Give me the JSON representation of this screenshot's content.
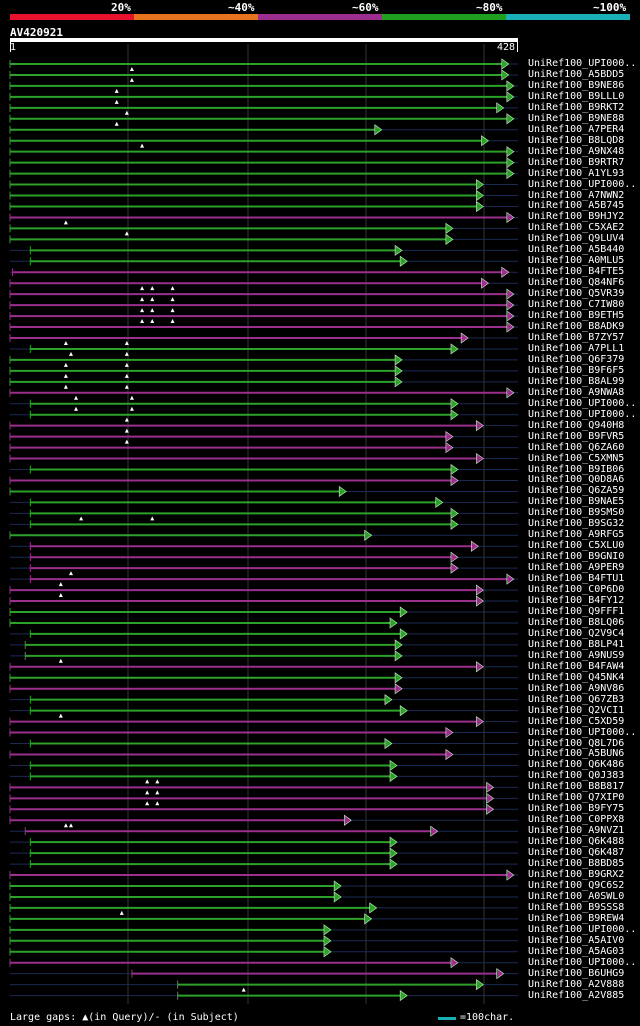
{
  "percent_labels": [
    "20%",
    "~40%",
    "~60%",
    "~80%",
    "~100%"
  ],
  "percent_colors": [
    "#e8102c",
    "#e8731f",
    "#9b2e8f",
    "#1f9e1f",
    "#19b0b8"
  ],
  "query": {
    "name": "AV420921",
    "start": "1",
    "end": "428"
  },
  "footer": {
    "gaps_text": "Large gaps: ▲(in Query)/- (in Subject)",
    "scale_text": "=100char."
  },
  "colors": {
    "green": "#2ea12a",
    "magenta": "#9a2f8c",
    "line": "#1a2a55",
    "accent": "#19b0b8"
  },
  "hits": [
    {
      "label": "UniRef100_UPI000..",
      "c": "g",
      "s": 0,
      "e": 0.97,
      "m": []
    },
    {
      "label": "UniRef100_A5BDD5",
      "c": "g",
      "s": 0,
      "e": 0.97,
      "m": [
        0.24
      ]
    },
    {
      "label": "UniRef100_B9NE86",
      "c": "g",
      "s": 0,
      "e": 0.98,
      "m": [
        0.24
      ]
    },
    {
      "label": "UniRef100_B9LLL0",
      "c": "g",
      "s": 0,
      "e": 0.98,
      "m": [
        0.21
      ]
    },
    {
      "label": "UniRef100_B9RKT2",
      "c": "g",
      "s": 0,
      "e": 0.96,
      "m": [
        0.21
      ]
    },
    {
      "label": "UniRef100_B9NE88",
      "c": "g",
      "s": 0,
      "e": 0.98,
      "m": [
        0.23
      ]
    },
    {
      "label": "UniRef100_A7PER4",
      "c": "g",
      "s": 0,
      "e": 0.72,
      "m": [
        0.21
      ]
    },
    {
      "label": "UniRef100_B8LQD8",
      "c": "g",
      "s": 0,
      "e": 0.93,
      "m": []
    },
    {
      "label": "UniRef100_A9NX48",
      "c": "g",
      "s": 0,
      "e": 0.98,
      "m": [
        0.26
      ]
    },
    {
      "label": "UniRef100_B9RTR7",
      "c": "g",
      "s": 0,
      "e": 0.98,
      "m": []
    },
    {
      "label": "UniRef100_A1YL93",
      "c": "g",
      "s": 0,
      "e": 0.98,
      "m": []
    },
    {
      "label": "UniRef100_UPI000..",
      "c": "g",
      "s": 0,
      "e": 0.92,
      "m": []
    },
    {
      "label": "UniRef100_A7NWN2",
      "c": "g",
      "s": 0,
      "e": 0.92,
      "m": []
    },
    {
      "label": "UniRef100_A5B745",
      "c": "g",
      "s": 0,
      "e": 0.92,
      "m": []
    },
    {
      "label": "UniRef100_B9HJY2",
      "c": "m",
      "s": 0,
      "e": 0.98,
      "m": []
    },
    {
      "label": "UniRef100_C5XAE2",
      "c": "g",
      "s": 0,
      "e": 0.86,
      "m": [
        0.11
      ]
    },
    {
      "label": "UniRef100_Q9LUV4",
      "c": "g",
      "s": 0,
      "e": 0.86,
      "m": [
        0.23
      ]
    },
    {
      "label": "UniRef100_A5B440",
      "c": "g",
      "s": 0.04,
      "e": 0.76,
      "m": []
    },
    {
      "label": "UniRef100_A0MLU5",
      "c": "g",
      "s": 0.04,
      "e": 0.77,
      "m": []
    },
    {
      "label": "UniRef100_B4FTE5",
      "c": "m",
      "s": 0.005,
      "e": 0.97,
      "m": []
    },
    {
      "label": "UniRef100_Q84NF6",
      "c": "m",
      "s": 0,
      "e": 0.93,
      "m": []
    },
    {
      "label": "UniRef100_Q5VR39",
      "c": "m",
      "s": 0,
      "e": 0.98,
      "m": [
        0.26,
        0.28,
        0.32
      ]
    },
    {
      "label": "UniRef100_C7IW80",
      "c": "m",
      "s": 0,
      "e": 0.98,
      "m": [
        0.26,
        0.28,
        0.32
      ]
    },
    {
      "label": "UniRef100_B9ETH5",
      "c": "m",
      "s": 0,
      "e": 0.98,
      "m": [
        0.26,
        0.28,
        0.32
      ]
    },
    {
      "label": "UniRef100_B8ADK9",
      "c": "m",
      "s": 0,
      "e": 0.98,
      "m": [
        0.26,
        0.28,
        0.32
      ]
    },
    {
      "label": "UniRef100_B7ZY57",
      "c": "m",
      "s": 0,
      "e": 0.89,
      "m": []
    },
    {
      "label": "UniRef100_A7PLL1",
      "c": "g",
      "s": 0.04,
      "e": 0.87,
      "m": [
        0.11,
        0.23
      ]
    },
    {
      "label": "UniRef100_Q6F379",
      "c": "g",
      "s": 0,
      "e": 0.76,
      "m": [
        0.12,
        0.23
      ]
    },
    {
      "label": "UniRef100_B9F6F5",
      "c": "g",
      "s": 0,
      "e": 0.76,
      "m": [
        0.11,
        0.23
      ]
    },
    {
      "label": "UniRef100_B8AL99",
      "c": "g",
      "s": 0,
      "e": 0.76,
      "m": [
        0.11,
        0.23
      ]
    },
    {
      "label": "UniRef100_A9NWA8",
      "c": "m",
      "s": 0,
      "e": 0.98,
      "m": [
        0.11,
        0.23
      ]
    },
    {
      "label": "UniRef100_UPI000..",
      "c": "g",
      "s": 0.04,
      "e": 0.87,
      "m": [
        0.13,
        0.24
      ]
    },
    {
      "label": "UniRef100_UPI000..",
      "c": "g",
      "s": 0.04,
      "e": 0.87,
      "m": [
        0.13,
        0.24
      ]
    },
    {
      "label": "UniRef100_Q940H8",
      "c": "m",
      "s": 0,
      "e": 0.92,
      "m": [
        0.23
      ]
    },
    {
      "label": "UniRef100_B9FVR5",
      "c": "m",
      "s": 0,
      "e": 0.86,
      "m": [
        0.23
      ]
    },
    {
      "label": "UniRef100_Q6ZA60",
      "c": "m",
      "s": 0,
      "e": 0.86,
      "m": [
        0.23
      ]
    },
    {
      "label": "UniRef100_C5XMN5",
      "c": "m",
      "s": 0,
      "e": 0.92,
      "m": []
    },
    {
      "label": "UniRef100_B9IB06",
      "c": "g",
      "s": 0.04,
      "e": 0.87,
      "m": []
    },
    {
      "label": "UniRef100_Q0D8A6",
      "c": "m",
      "s": 0,
      "e": 0.87,
      "m": []
    },
    {
      "label": "UniRef100_Q6ZA59",
      "c": "g",
      "s": 0,
      "e": 0.65,
      "m": []
    },
    {
      "label": "UniRef100_B9NAE5",
      "c": "g",
      "s": 0.04,
      "e": 0.84,
      "m": []
    },
    {
      "label": "UniRef100_B9SMS0",
      "c": "g",
      "s": 0.04,
      "e": 0.87,
      "m": []
    },
    {
      "label": "UniRef100_B9SG32",
      "c": "g",
      "s": 0.04,
      "e": 0.87,
      "m": [
        0.14,
        0.28
      ]
    },
    {
      "label": "UniRef100_A9RFG5",
      "c": "g",
      "s": 0,
      "e": 0.7,
      "m": []
    },
    {
      "label": "UniRef100_C5XLU0",
      "c": "m",
      "s": 0.04,
      "e": 0.91,
      "m": []
    },
    {
      "label": "UniRef100_B9GNI0",
      "c": "m",
      "s": 0.04,
      "e": 0.87,
      "m": []
    },
    {
      "label": "UniRef100_A9PER9",
      "c": "m",
      "s": 0.04,
      "e": 0.87,
      "m": []
    },
    {
      "label": "UniRef100_B4FTU1",
      "c": "m",
      "s": 0.04,
      "e": 0.98,
      "m": [
        0.12
      ]
    },
    {
      "label": "UniRef100_C0P6D0",
      "c": "m",
      "s": 0,
      "e": 0.92,
      "m": [
        0.1
      ]
    },
    {
      "label": "UniRef100_B4FY12",
      "c": "m",
      "s": 0,
      "e": 0.92,
      "m": [
        0.1
      ]
    },
    {
      "label": "UniRef100_Q9FFF1",
      "c": "g",
      "s": 0,
      "e": 0.77,
      "m": []
    },
    {
      "label": "UniRef100_B8LQ06",
      "c": "g",
      "s": 0,
      "e": 0.75,
      "m": []
    },
    {
      "label": "UniRef100_Q2V9C4",
      "c": "g",
      "s": 0.04,
      "e": 0.77,
      "m": []
    },
    {
      "label": "UniRef100_B8LP41",
      "c": "g",
      "s": 0.03,
      "e": 0.76,
      "m": []
    },
    {
      "label": "UniRef100_A9NUS9",
      "c": "g",
      "s": 0.03,
      "e": 0.76,
      "m": []
    },
    {
      "label": "UniRef100_B4FAW4",
      "c": "m",
      "s": 0,
      "e": 0.92,
      "m": [
        0.1
      ]
    },
    {
      "label": "UniRef100_Q45NK4",
      "c": "g",
      "s": 0,
      "e": 0.76,
      "m": []
    },
    {
      "label": "UniRef100_A9NV86",
      "c": "m",
      "s": 0,
      "e": 0.76,
      "m": []
    },
    {
      "label": "UniRef100_Q67ZB3",
      "c": "g",
      "s": 0.04,
      "e": 0.74,
      "m": []
    },
    {
      "label": "UniRef100_Q2VCI1",
      "c": "g",
      "s": 0.04,
      "e": 0.77,
      "m": []
    },
    {
      "label": "UniRef100_C5XD59",
      "c": "m",
      "s": 0,
      "e": 0.92,
      "m": [
        0.1
      ]
    },
    {
      "label": "UniRef100_UPI000..",
      "c": "m",
      "s": 0,
      "e": 0.86,
      "m": []
    },
    {
      "label": "UniRef100_Q8L7D6",
      "c": "g",
      "s": 0.04,
      "e": 0.74,
      "m": []
    },
    {
      "label": "UniRef100_A5BUN6",
      "c": "m",
      "s": 0,
      "e": 0.86,
      "m": []
    },
    {
      "label": "UniRef100_Q6K486",
      "c": "g",
      "s": 0.04,
      "e": 0.75,
      "m": []
    },
    {
      "label": "UniRef100_Q0J383",
      "c": "g",
      "s": 0.04,
      "e": 0.75,
      "m": []
    },
    {
      "label": "UniRef100_B8B817",
      "c": "m",
      "s": 0,
      "e": 0.94,
      "m": [
        0.27,
        0.29
      ]
    },
    {
      "label": "UniRef100_Q7XIP0",
      "c": "m",
      "s": 0,
      "e": 0.94,
      "m": [
        0.27,
        0.29
      ]
    },
    {
      "label": "UniRef100_B9FY75",
      "c": "m",
      "s": 0,
      "e": 0.94,
      "m": [
        0.27,
        0.29
      ]
    },
    {
      "label": "UniRef100_C0PPX8",
      "c": "m",
      "s": 0,
      "e": 0.66,
      "m": []
    },
    {
      "label": "UniRef100_A9NVZ1",
      "c": "m",
      "s": 0.03,
      "e": 0.83,
      "m": [
        0.11,
        0.12
      ]
    },
    {
      "label": "UniRef100_Q6K488",
      "c": "g",
      "s": 0.04,
      "e": 0.75,
      "m": []
    },
    {
      "label": "UniRef100_Q6K487",
      "c": "g",
      "s": 0.04,
      "e": 0.75,
      "m": []
    },
    {
      "label": "UniRef100_B8BD85",
      "c": "g",
      "s": 0.04,
      "e": 0.75,
      "m": []
    },
    {
      "label": "UniRef100_B9GRX2",
      "c": "m",
      "s": 0,
      "e": 0.98,
      "m": []
    },
    {
      "label": "UniRef100_Q9C6S2",
      "c": "g",
      "s": 0,
      "e": 0.64,
      "m": []
    },
    {
      "label": "UniRef100_A0SWL0",
      "c": "g",
      "s": 0,
      "e": 0.64,
      "m": []
    },
    {
      "label": "UniRef100_B9SSS8",
      "c": "g",
      "s": 0,
      "e": 0.71,
      "m": []
    },
    {
      "label": "UniRef100_B9REW4",
      "c": "g",
      "s": 0,
      "e": 0.7,
      "m": [
        0.22
      ]
    },
    {
      "label": "UniRef100_UPI000..",
      "c": "g",
      "s": 0,
      "e": 0.62,
      "m": []
    },
    {
      "label": "UniRef100_A5AIV0",
      "c": "g",
      "s": 0,
      "e": 0.62,
      "m": []
    },
    {
      "label": "UniRef100_A5AG03",
      "c": "g",
      "s": 0,
      "e": 0.62,
      "m": []
    },
    {
      "label": "UniRef100_UPI000..",
      "c": "m",
      "s": 0,
      "e": 0.87,
      "m": []
    },
    {
      "label": "UniRef100_B6UHG9",
      "c": "m",
      "s": 0.24,
      "e": 0.96,
      "m": []
    },
    {
      "label": "UniRef100_A2V888",
      "c": "g",
      "s": 0.33,
      "e": 0.92,
      "m": []
    },
    {
      "label": "UniRef100_A2V885",
      "c": "g",
      "s": 0.33,
      "e": 0.77,
      "m": [
        0.46
      ]
    }
  ]
}
